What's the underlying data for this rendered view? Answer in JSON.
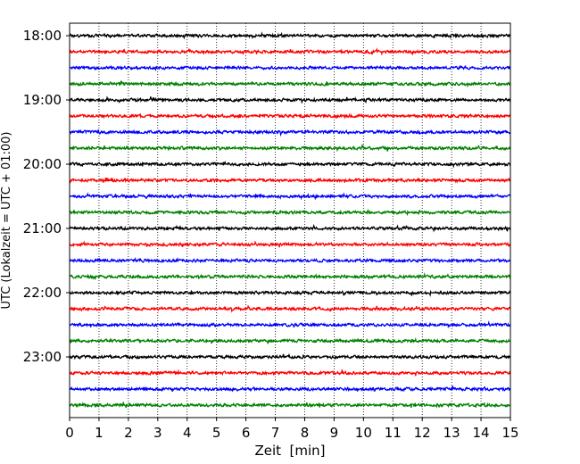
{
  "chart_data": {
    "type": "line",
    "title": "",
    "xlabel": "Zeit  [min]",
    "ylabel": "UTC (Lokalzeit = UTC + 01:00)",
    "xlim": [
      0,
      15
    ],
    "x_ticks": [
      "0",
      "1",
      "2",
      "3",
      "4",
      "5",
      "6",
      "7",
      "8",
      "9",
      "10",
      "11",
      "12",
      "13",
      "14",
      "15"
    ],
    "y_ticks": [
      "18:00",
      "19:00",
      "20:00",
      "21:00",
      "22:00",
      "23:00"
    ],
    "trace_start_times": [
      "18:00",
      "18:15",
      "18:30",
      "18:45",
      "19:00",
      "19:15",
      "19:30",
      "19:45",
      "20:00",
      "20:15",
      "20:30",
      "20:45",
      "21:00",
      "21:15",
      "21:30",
      "21:45",
      "22:00",
      "22:15",
      "22:30",
      "22:45",
      "23:00",
      "23:15",
      "23:30",
      "23:45"
    ],
    "trace_minutes_per_row": 15,
    "series_colors": [
      "#000000",
      "#ff0000",
      "#0000ff",
      "#008000"
    ],
    "grid": "vertical dotted lines at each minute",
    "legend": "none"
  }
}
